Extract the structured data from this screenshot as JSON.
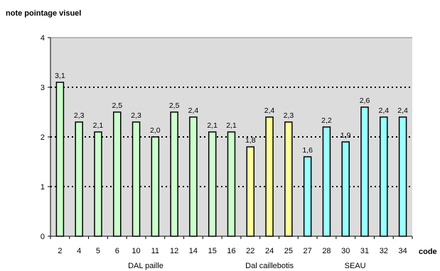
{
  "chart_data": {
    "type": "bar",
    "ylabel": "note pointage visuel",
    "xlabel": "code",
    "ylim": [
      0,
      4
    ],
    "yticks": [
      "0",
      "1",
      "2",
      "3",
      "4"
    ],
    "grid": "horizontal dotted",
    "categories": [
      "2",
      "4",
      "5",
      "6",
      "10",
      "11",
      "12",
      "14",
      "15",
      "16",
      "22",
      "24",
      "25",
      "27",
      "28",
      "30",
      "31",
      "32",
      "34"
    ],
    "values": [
      3.1,
      2.3,
      2.1,
      2.5,
      2.3,
      2.0,
      2.5,
      2.4,
      2.1,
      2.1,
      1.8,
      2.4,
      2.3,
      1.6,
      2.2,
      1.9,
      2.6,
      2.4,
      2.4
    ],
    "value_labels": [
      "3,1",
      "2,3",
      "2,1",
      "2,5",
      "2,3",
      "2,0",
      "2,5",
      "2,4",
      "2,1",
      "2,1",
      "1,8",
      "2,4",
      "2,3",
      "1,6",
      "2,2",
      "1,9",
      "2,6",
      "2,4",
      "2,4"
    ],
    "groups": [
      {
        "name": "DAL paille",
        "start": 0,
        "end": 9,
        "color": "#ccffcc"
      },
      {
        "name": "Dal caillebotis",
        "start": 10,
        "end": 12,
        "color": "#ffff99"
      },
      {
        "name": "SEAU",
        "start": 13,
        "end": 18,
        "color": "#99ffff"
      }
    ],
    "plot_background": "#dcdcdc"
  }
}
